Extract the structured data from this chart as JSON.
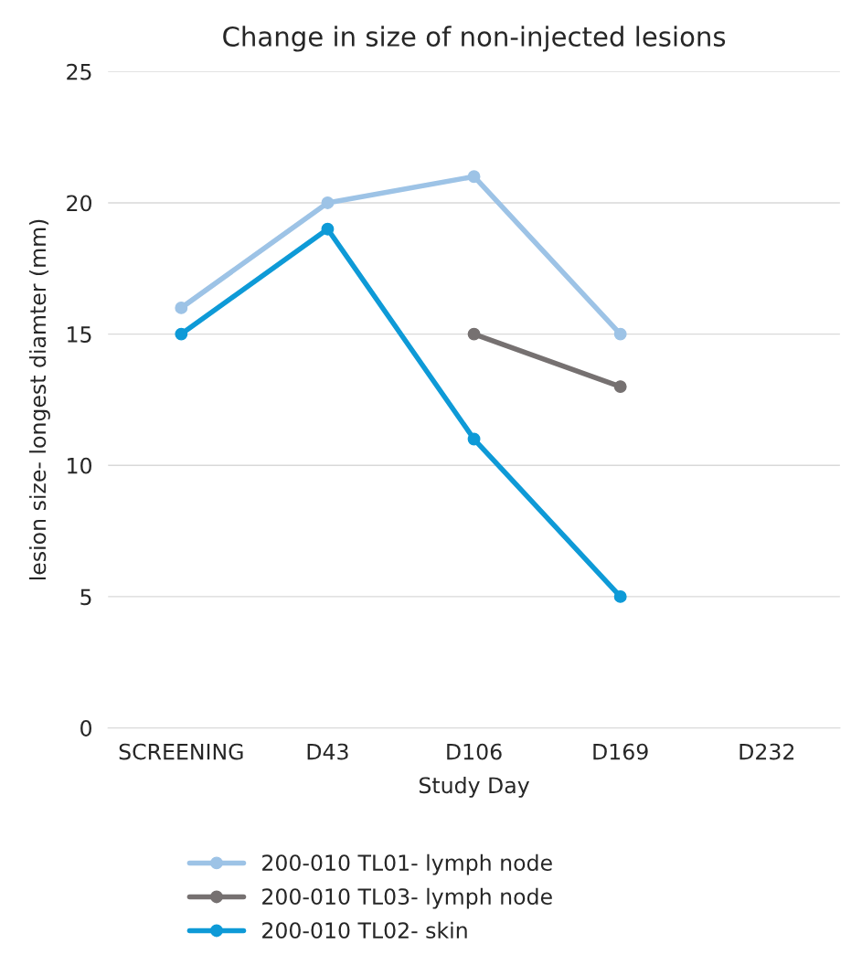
{
  "chart_data": {
    "type": "line",
    "title": "Change in size of non-injected lesions",
    "xlabel": "Study Day",
    "ylabel": "lesion size- longest diamter (mm)",
    "categories": [
      "SCREENING",
      "D43",
      "D106",
      "D169",
      "D232"
    ],
    "series": [
      {
        "name": "200-010 TL01- lymph node",
        "color": "#9dc3e6",
        "values": [
          16,
          20,
          21,
          15,
          null
        ]
      },
      {
        "name": "200-010 TL03- lymph node",
        "color": "#767171",
        "values": [
          null,
          null,
          15,
          13,
          null
        ]
      },
      {
        "name": "200-010 TL02- skin",
        "color": "#0e9ad7",
        "values": [
          15,
          19,
          11,
          5,
          null
        ]
      }
    ],
    "ylim": [
      0,
      25
    ],
    "yticks": [
      0,
      5,
      10,
      15,
      20,
      25
    ],
    "grid": "y",
    "legend": "bottom",
    "marker": "circle",
    "line_style": "solid"
  }
}
